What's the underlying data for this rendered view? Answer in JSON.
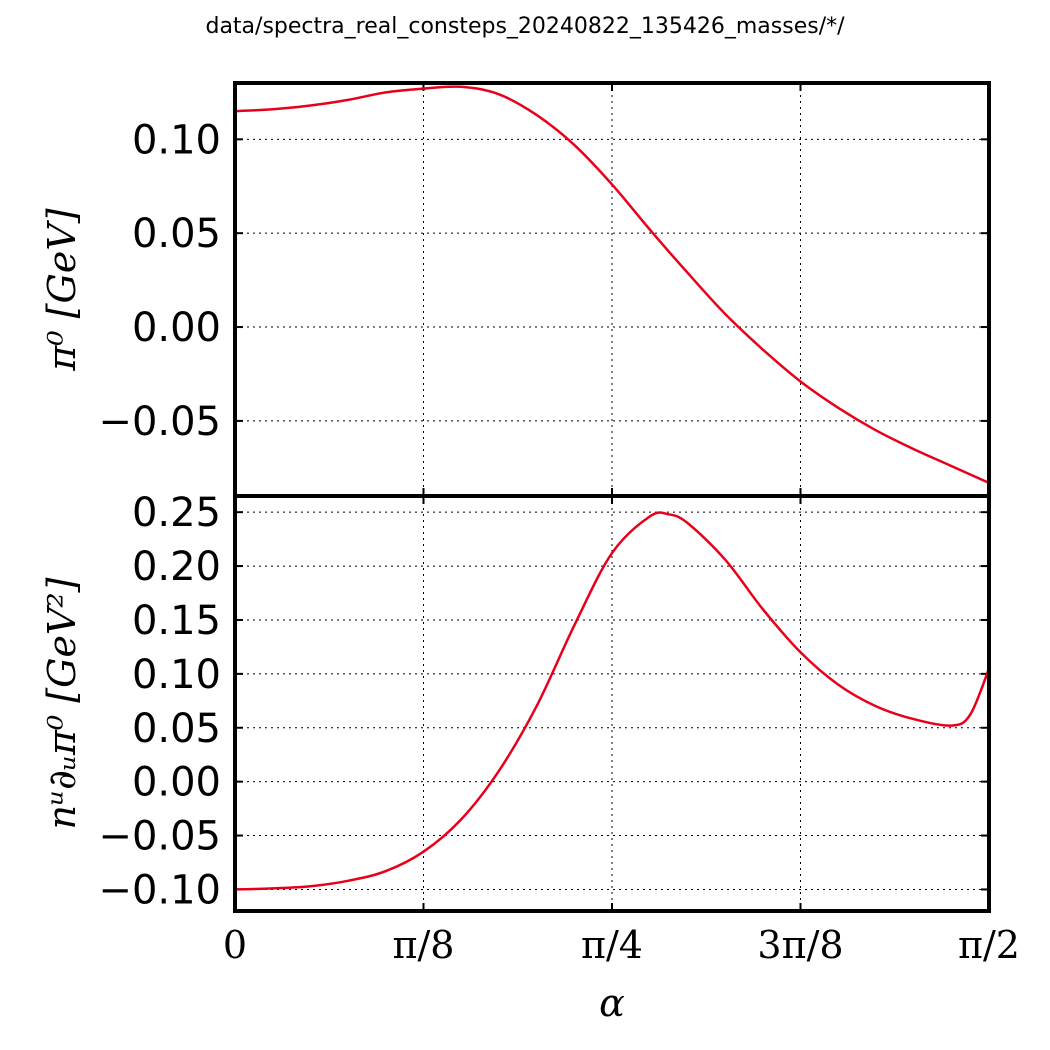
{
  "figure_title": "data/spectra_real_consteps_20240822_135426_masses/*/",
  "colors": {
    "series": "#e8001b",
    "axes": "#000000",
    "grid": "#000000"
  },
  "chart_data": [
    {
      "type": "line",
      "panel": "top",
      "title": "",
      "xlabel": "",
      "ylabel": "π⁰ [GeV]",
      "xlim": [
        0,
        1.5708
      ],
      "ylim": [
        -0.09,
        0.13
      ],
      "grid": true,
      "yticks": [
        {
          "value": 0.1,
          "label": "0.10"
        },
        {
          "value": 0.05,
          "label": "0.05"
        },
        {
          "value": 0.0,
          "label": "0.00"
        },
        {
          "value": -0.05,
          "label": "−0.05"
        }
      ],
      "series": [
        {
          "x": [
            0.0,
            0.0785,
            0.1571,
            0.2356,
            0.3142,
            0.3927,
            0.4712,
            0.5498,
            0.6283,
            0.7069,
            0.7854,
            0.8639,
            0.9425,
            1.021,
            1.0996,
            1.1781,
            1.2566,
            1.3352,
            1.4137,
            1.4923,
            1.5708
          ],
          "y": [
            0.115,
            0.116,
            0.118,
            0.121,
            0.125,
            0.127,
            0.128,
            0.124,
            0.113,
            0.097,
            0.076,
            0.052,
            0.029,
            0.007,
            -0.012,
            -0.029,
            -0.043,
            -0.055,
            -0.065,
            -0.074,
            -0.083
          ]
        }
      ]
    },
    {
      "type": "line",
      "panel": "bottom",
      "title": "",
      "xlabel": "α",
      "ylabel": "nᵘ∂ᵤπ⁰ [GeV²]",
      "xlim": [
        0,
        1.5708
      ],
      "ylim": [
        -0.12,
        0.265
      ],
      "grid": true,
      "yticks": [
        {
          "value": 0.25,
          "label": "0.25"
        },
        {
          "value": 0.2,
          "label": "0.20"
        },
        {
          "value": 0.15,
          "label": "0.15"
        },
        {
          "value": 0.1,
          "label": "0.10"
        },
        {
          "value": 0.05,
          "label": "0.05"
        },
        {
          "value": 0.0,
          "label": "0.00"
        },
        {
          "value": -0.05,
          "label": "−0.05"
        },
        {
          "value": -0.1,
          "label": "−0.10"
        }
      ],
      "xticks": [
        {
          "value": 0,
          "label": "0"
        },
        {
          "value": 0.3927,
          "label": "π/8"
        },
        {
          "value": 0.7854,
          "label": "π/4"
        },
        {
          "value": 1.1781,
          "label": "3π/8"
        },
        {
          "value": 1.5708,
          "label": "π/2"
        }
      ],
      "series": [
        {
          "x": [
            0.0,
            0.0785,
            0.1571,
            0.2356,
            0.3142,
            0.3927,
            0.4712,
            0.5498,
            0.6283,
            0.7069,
            0.7854,
            0.8639,
            0.9032,
            0.9425,
            1.021,
            1.0996,
            1.1781,
            1.2566,
            1.3352,
            1.4137,
            1.4923,
            1.5315,
            1.5708
          ],
          "y": [
            -0.1,
            -0.099,
            -0.097,
            -0.092,
            -0.083,
            -0.065,
            -0.035,
            0.01,
            0.07,
            0.145,
            0.212,
            0.246,
            0.248,
            0.24,
            0.206,
            0.16,
            0.12,
            0.09,
            0.07,
            0.058,
            0.052,
            0.062,
            0.105
          ]
        }
      ]
    }
  ]
}
